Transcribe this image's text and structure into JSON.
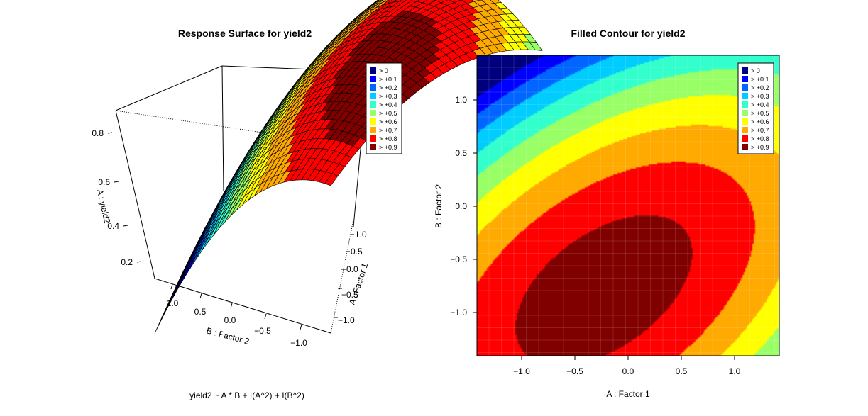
{
  "chart_data": [
    {
      "type": "surface",
      "title": "Response Surface for yield2",
      "zlabel": "A :  yield2",
      "xlabel": "A :  Factor 1",
      "ylabel": "B :  Factor 2",
      "x_ticks": [
        "1.0",
        "0.5",
        "0.0",
        "−0.5",
        "−1.0"
      ],
      "y_ticks": [
        "1.0",
        "0.5",
        "0.0",
        "−0.5",
        "−1.0"
      ],
      "z_ticks": [
        "0.8",
        "0.6",
        "0.4",
        "0.2"
      ],
      "formula": "yield2 ~ A * B + I(A^2) + I(B^2)",
      "xlim": [
        -1.41,
        1.41
      ],
      "ylim": [
        -1.41,
        1.41
      ],
      "zlim": [
        0.1,
        0.9
      ],
      "legend_position": "top-right",
      "legend": [
        "> 0",
        "> +0.1",
        "> +0.2",
        "> +0.3",
        "> +0.4",
        "> +0.5",
        "> +0.6",
        "> +0.7",
        "> +0.8",
        "> +0.9"
      ]
    },
    {
      "type": "filled-contour",
      "title": "Filled Contour for yield2",
      "xlabel": "A :  Factor 1",
      "ylabel": "B :  Factor 2",
      "x_ticks": [
        "−1.0",
        "−0.5",
        "0.0",
        "0.5",
        "1.0"
      ],
      "y_ticks": [
        "1.0",
        "0.5",
        "0.0",
        "−0.5",
        "−1.0"
      ],
      "xlim": [
        -1.41,
        1.41
      ],
      "ylim": [
        -1.41,
        1.41
      ],
      "levels": [
        0,
        0.1,
        0.2,
        0.3,
        0.4,
        0.5,
        0.6,
        0.7,
        0.8,
        0.9
      ],
      "legend_position": "top-right",
      "legend": [
        "> 0",
        "> +0.1",
        "> +0.2",
        "> +0.3",
        "> +0.4",
        "> +0.5",
        "> +0.6",
        "> +0.7",
        "> +0.8",
        "> +0.9"
      ]
    }
  ],
  "colors": [
    "#00007f",
    "#0000ff",
    "#0066ff",
    "#00ccff",
    "#33ffcc",
    "#99ff66",
    "#ffff00",
    "#ffaa00",
    "#ff0000",
    "#800000"
  ]
}
